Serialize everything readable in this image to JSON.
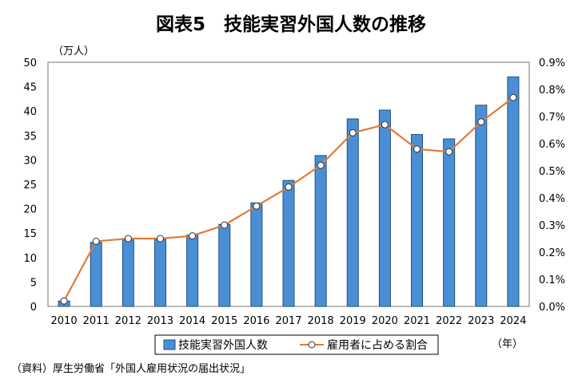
{
  "chart_data": {
    "type": "bar",
    "title": "図表5　技能実習外国人数の推移",
    "y_unit_label": "（万人）",
    "x_unit_label": "（年）",
    "categories": [
      "2010",
      "2011",
      "2012",
      "2013",
      "2014",
      "2015",
      "2016",
      "2017",
      "2018",
      "2019",
      "2020",
      "2021",
      "2022",
      "2023",
      "2024"
    ],
    "series": [
      {
        "name": "技能実習外国人数",
        "type": "bar",
        "axis": "left",
        "color": "#4a8fd6",
        "values": [
          1.1,
          13.1,
          13.6,
          13.7,
          14.6,
          16.8,
          21.2,
          25.8,
          30.9,
          38.4,
          40.2,
          35.2,
          34.3,
          41.2,
          47.0
        ]
      },
      {
        "name": "雇用者に占める割合",
        "type": "line",
        "axis": "right",
        "color": "#e07b39",
        "values": [
          0.02,
          0.24,
          0.25,
          0.25,
          0.26,
          0.3,
          0.37,
          0.44,
          0.52,
          0.64,
          0.67,
          0.58,
          0.57,
          0.68,
          0.77
        ]
      }
    ],
    "y_left": {
      "min": 0,
      "max": 50,
      "ticks": [
        "0",
        "5",
        "10",
        "15",
        "20",
        "25",
        "30",
        "35",
        "40",
        "45",
        "50"
      ]
    },
    "y_right": {
      "min": 0,
      "max": 0.9,
      "ticks": [
        "0.0%",
        "0.1%",
        "0.2%",
        "0.3%",
        "0.4%",
        "0.5%",
        "0.6%",
        "0.7%",
        "0.8%",
        "0.9%"
      ]
    },
    "grid": false,
    "legend_position": "bottom-center"
  },
  "source": "（資料）厚生労働省「外国人雇用状況の届出状況」"
}
